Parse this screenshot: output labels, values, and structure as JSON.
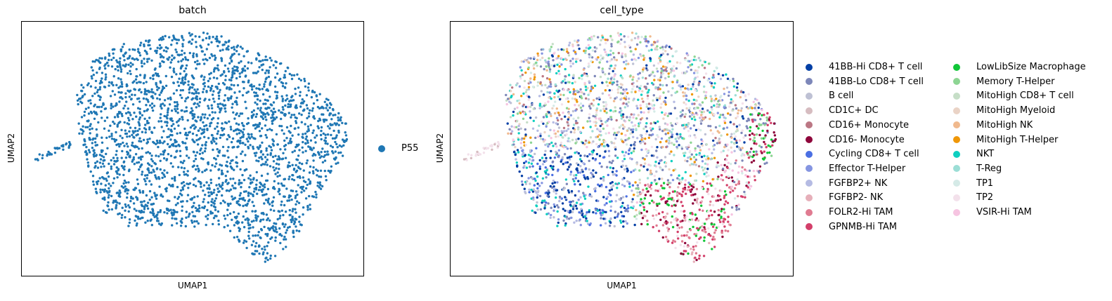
{
  "chart_data": [
    {
      "type": "scatter",
      "title": "batch",
      "xlabel": "UMAP1",
      "ylabel": "UMAP2",
      "legend_placement": "right",
      "categories": [
        "P55"
      ],
      "colors": {
        "P55": "#1f77b4"
      }
    },
    {
      "type": "scatter",
      "title": "cell_type",
      "xlabel": "UMAP1",
      "ylabel": "UMAP2",
      "legend_placement": "right",
      "categories": [
        "41BB-Hi CD8+ T cell",
        "41BB-Lo CD8+ T cell",
        "B cell",
        "CD1C+ DC",
        "CD16+ Monocyte",
        "CD16- Monocyte",
        "Cycling CD8+ T cell",
        "Effector T-Helper",
        "FGFBP2+ NK",
        "FGFBP2- NK",
        "FOLR2-Hi TAM",
        "GPNMB-Hi TAM",
        "LowLibSize Macrophage",
        "Memory T-Helper",
        "MitoHigh CD8+ T cell",
        "MitoHigh Myeloid",
        "MitoHigh NK",
        "MitoHigh T-Helper",
        "NKT",
        "T-Reg",
        "TP1",
        "TP2",
        "VSIR-Hi TAM"
      ],
      "colors": {
        "41BB-Hi CD8+ T cell": "#023fa5",
        "41BB-Lo CD8+ T cell": "#7d87b9",
        "B cell": "#bec1d4",
        "CD1C+ DC": "#d6bcc0",
        "CD16+ Monocyte": "#bb7784",
        "CD16- Monocyte": "#8e063b",
        "Cycling CD8+ T cell": "#4a6fe3",
        "Effector T-Helper": "#8595e1",
        "FGFBP2+ NK": "#b5bbe3",
        "FGFBP2- NK": "#e6afb9",
        "FOLR2-Hi TAM": "#e07b91",
        "GPNMB-Hi TAM": "#d33f6a",
        "LowLibSize Macrophage": "#11c638",
        "Memory T-Helper": "#8dd593",
        "MitoHigh CD8+ T cell": "#c6dec7",
        "MitoHigh Myeloid": "#ead3c6",
        "MitoHigh NK": "#f0b98d",
        "MitoHigh T-Helper": "#ef9708",
        "NKT": "#0fcfc0",
        "T-Reg": "#9cded6",
        "TP1": "#d5eae7",
        "TP2": "#f3e1eb",
        "VSIR-Hi TAM": "#f6c4e1"
      }
    }
  ]
}
